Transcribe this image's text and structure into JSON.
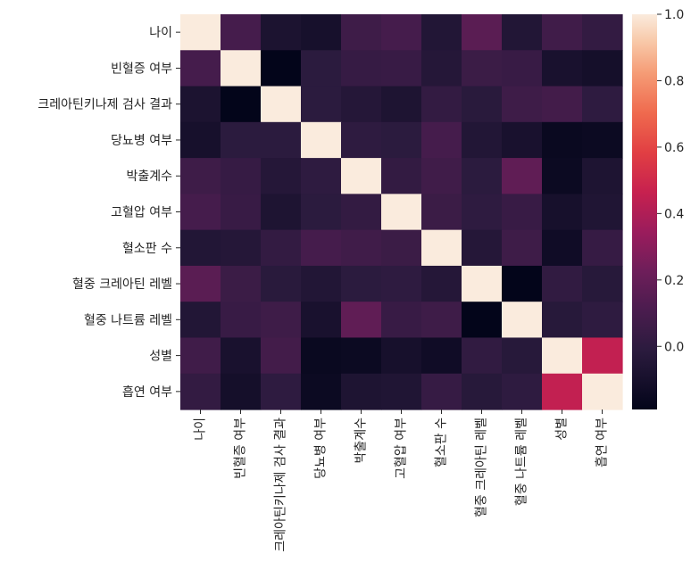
{
  "chart_data": {
    "type": "heatmap",
    "title": "",
    "xlabel": "",
    "ylabel": "",
    "labels": [
      "나이",
      "빈혈증 여부",
      "크레아틴키나제 검사 결과",
      "당뇨병 여부",
      "박출계수",
      "고혈압 여부",
      "혈소판 수",
      "혈중 크레아틴 레벨",
      "혈중 나트륨 레벨",
      "성별",
      "흡연 여부"
    ],
    "matrix": [
      [
        1.0,
        0.09,
        -0.08,
        -0.1,
        0.06,
        0.09,
        -0.05,
        0.16,
        -0.05,
        0.07,
        0.02
      ],
      [
        0.09,
        1.0,
        -0.19,
        -0.01,
        0.03,
        0.04,
        -0.04,
        0.05,
        0.04,
        -0.09,
        -0.11
      ],
      [
        -0.08,
        -0.19,
        1.0,
        -0.01,
        -0.04,
        -0.07,
        0.02,
        -0.02,
        0.06,
        0.08,
        0.0
      ],
      [
        -0.1,
        -0.01,
        -0.01,
        1.0,
        -0.0,
        -0.01,
        0.09,
        -0.05,
        -0.09,
        -0.16,
        -0.15
      ],
      [
        0.06,
        0.03,
        -0.04,
        -0.0,
        1.0,
        0.02,
        0.07,
        -0.01,
        0.18,
        -0.15,
        -0.07
      ],
      [
        0.09,
        0.04,
        -0.07,
        -0.01,
        0.02,
        1.0,
        0.05,
        -0.0,
        0.04,
        -0.1,
        -0.06
      ],
      [
        -0.05,
        -0.04,
        0.02,
        0.09,
        0.07,
        0.05,
        1.0,
        -0.04,
        0.06,
        -0.13,
        0.03
      ],
      [
        0.16,
        0.05,
        -0.02,
        -0.05,
        -0.01,
        -0.0,
        -0.04,
        1.0,
        -0.19,
        0.01,
        -0.03
      ],
      [
        -0.05,
        0.04,
        0.06,
        -0.09,
        0.18,
        0.04,
        0.06,
        -0.19,
        1.0,
        -0.03,
        0.0
      ],
      [
        0.07,
        -0.09,
        0.08,
        -0.16,
        -0.15,
        -0.1,
        -0.13,
        0.01,
        -0.03,
        1.0,
        0.45
      ],
      [
        0.02,
        -0.11,
        0.0,
        -0.15,
        -0.07,
        -0.06,
        0.03,
        -0.03,
        0.0,
        0.45,
        1.0
      ]
    ],
    "colorbar": {
      "colormap": "rocket",
      "range": [
        -0.19,
        1.0
      ],
      "ticks": [
        1.0,
        0.8,
        0.6,
        0.4,
        0.2,
        0.0
      ],
      "tick_labels": [
        "1.0",
        "0.8",
        "0.6",
        "0.4",
        "0.2",
        "0.0"
      ],
      "placement": "right"
    },
    "grid": false,
    "legend": "colorbar-right"
  }
}
